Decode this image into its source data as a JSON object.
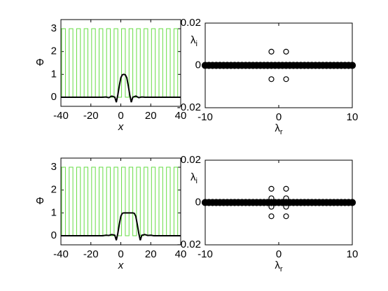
{
  "chart_data": [
    {
      "type": "line",
      "ylabel": "Φ",
      "xlabel": "x",
      "xlim": [
        -40,
        40
      ],
      "ylim": [
        -0.4,
        3.4
      ],
      "xticks": [
        -40,
        -20,
        0,
        20,
        40
      ],
      "yticks": [
        0,
        1,
        2,
        3
      ],
      "series": [
        {
          "color": "#66dd44",
          "x": [
            -40,
            -39.5,
            -39.5,
            -37,
            -37,
            -34.5,
            -34.5,
            -32,
            -32,
            -29.5,
            -29.5,
            -27,
            -27,
            -24.5,
            -24.5,
            -22,
            -22,
            -19.5,
            -19.5,
            -17,
            -17,
            -14.5,
            -14.5,
            -12,
            -12,
            -9.5,
            -9.5,
            -7,
            -7,
            -4.5,
            -4.5,
            -2,
            -2,
            0.5,
            0.5,
            3,
            3,
            5.5,
            5.5,
            8,
            8,
            10.5,
            10.5,
            13,
            13,
            15.5,
            15.5,
            18,
            18,
            20.5,
            20.5,
            23,
            23,
            25.5,
            25.5,
            28,
            28,
            30.5,
            30.5,
            33,
            33,
            35.5,
            35.5,
            38,
            38,
            40
          ],
          "values": [
            0,
            0,
            3,
            3,
            0,
            0,
            3,
            3,
            0,
            0,
            3,
            3,
            0,
            0,
            3,
            3,
            0,
            0,
            3,
            3,
            0,
            0,
            3,
            3,
            0,
            0,
            3,
            3,
            0,
            0,
            3,
            3,
            0,
            0,
            3,
            3,
            0,
            0,
            3,
            3,
            0,
            0,
            3,
            3,
            0,
            0,
            3,
            3,
            0,
            0,
            3,
            3,
            0,
            0,
            3,
            3,
            0,
            0,
            3,
            3,
            0,
            0,
            3,
            3,
            0,
            0
          ]
        },
        {
          "color": "#000000",
          "x": [
            -40,
            -12,
            -10,
            -8,
            -6,
            -4,
            -3,
            -2,
            -1,
            0,
            1,
            2,
            3,
            4,
            5,
            6,
            7,
            8,
            10,
            12,
            14,
            16,
            40
          ],
          "values": [
            0,
            0,
            0.01,
            -0.02,
            0.05,
            0,
            -0.22,
            0.1,
            0.5,
            0.85,
            0.98,
            1,
            0.98,
            0.85,
            0.5,
            0.1,
            -0.22,
            0,
            0.05,
            -0.02,
            0.01,
            0,
            0
          ]
        }
      ]
    },
    {
      "type": "scatter",
      "ylabel": "λ",
      "ylabel_sub": "i",
      "xlabel": "λ",
      "xlabel_sub": "r",
      "xlim": [
        -10,
        10
      ],
      "ylim": [
        -0.02,
        0.02
      ],
      "xticks": [
        -10,
        0,
        10
      ],
      "yticks": [
        -0.02,
        0,
        0.02
      ],
      "series": [
        {
          "color": "#000000",
          "marker": "filled",
          "x": [
            -10,
            -9.5,
            -9,
            -8.5,
            -8,
            -7.5,
            -7,
            -6.5,
            -6,
            -5.5,
            -5,
            -4.5,
            -4,
            -3.5,
            -3,
            -2.5,
            -2,
            -1.5,
            -1,
            -0.5,
            0,
            0.5,
            1,
            1.5,
            2,
            2.5,
            3,
            3.5,
            4,
            4.5,
            5,
            5.5,
            6,
            6.5,
            7,
            7.5,
            8,
            8.5,
            9,
            9.5,
            10
          ],
          "values": [
            0,
            0,
            0,
            0,
            0,
            0,
            0,
            0,
            0,
            0,
            0,
            0,
            0,
            0,
            0,
            0,
            0,
            0,
            0,
            0,
            0,
            0,
            0,
            0,
            0,
            0,
            0,
            0,
            0,
            0,
            0,
            0,
            0,
            0,
            0,
            0,
            0,
            0,
            0,
            0,
            0
          ]
        },
        {
          "color": "#000000",
          "marker": "open",
          "x": [
            -1,
            1,
            -1,
            1,
            -1,
            1
          ],
          "values": [
            0.0065,
            0.0065,
            0,
            0,
            -0.0065,
            -0.0065
          ]
        }
      ]
    },
    {
      "type": "line",
      "ylabel": "Φ",
      "xlabel": "x",
      "xlim": [
        -40,
        40
      ],
      "ylim": [
        -0.4,
        3.4
      ],
      "xticks": [
        -40,
        -20,
        0,
        20,
        40
      ],
      "yticks": [
        0,
        1,
        2,
        3
      ],
      "series": [
        {
          "color": "#66dd44",
          "x": [
            -40,
            -39.5,
            -39.5,
            -37,
            -37,
            -34.5,
            -34.5,
            -32,
            -32,
            -29.5,
            -29.5,
            -27,
            -27,
            -24.5,
            -24.5,
            -22,
            -22,
            -19.5,
            -19.5,
            -17,
            -17,
            -14.5,
            -14.5,
            -12,
            -12,
            -9.5,
            -9.5,
            -7,
            -7,
            -4.5,
            -4.5,
            -2,
            -2,
            0.5,
            0.5,
            3,
            3,
            5.5,
            5.5,
            8,
            8,
            10.5,
            10.5,
            13,
            13,
            15.5,
            15.5,
            18,
            18,
            20.5,
            20.5,
            23,
            23,
            25.5,
            25.5,
            28,
            28,
            30.5,
            30.5,
            33,
            33,
            35.5,
            35.5,
            38,
            38,
            40
          ],
          "values": [
            0,
            0,
            3,
            3,
            0,
            0,
            3,
            3,
            0,
            0,
            3,
            3,
            0,
            0,
            3,
            3,
            0,
            0,
            3,
            3,
            0,
            0,
            3,
            3,
            0,
            0,
            3,
            3,
            0,
            0,
            3,
            3,
            0,
            0,
            3,
            3,
            0,
            0,
            3,
            3,
            0,
            0,
            3,
            3,
            0,
            0,
            3,
            3,
            0,
            0,
            3,
            3,
            0,
            0,
            3,
            3,
            0,
            0,
            3,
            3,
            0,
            0,
            3,
            3,
            0,
            0
          ]
        },
        {
          "color": "#000000",
          "x": [
            -40,
            -12,
            -10,
            -8,
            -6,
            -4,
            -3,
            -2,
            -1,
            0,
            1,
            2,
            8,
            9,
            10,
            11,
            12,
            13,
            14,
            16,
            18,
            20,
            22,
            40
          ],
          "values": [
            0,
            0,
            0.02,
            0.01,
            0.05,
            0.02,
            -0.2,
            0.1,
            0.5,
            0.85,
            0.98,
            1,
            1,
            0.98,
            0.85,
            0.5,
            0.1,
            -0.2,
            0.02,
            0.05,
            0.01,
            0.02,
            0,
            0
          ]
        }
      ]
    },
    {
      "type": "scatter",
      "ylabel": "λ",
      "ylabel_sub": "i",
      "xlabel": "λ",
      "xlabel_sub": "r",
      "xlim": [
        -10,
        10
      ],
      "ylim": [
        -0.02,
        0.02
      ],
      "xticks": [
        -10,
        0,
        10
      ],
      "yticks": [
        -0.02,
        0,
        0.02
      ],
      "series": [
        {
          "color": "#000000",
          "marker": "filled",
          "x": [
            -10,
            -9.5,
            -9,
            -8.5,
            -8,
            -7.5,
            -7,
            -6.5,
            -6,
            -5.5,
            -5,
            -4.5,
            -4,
            -3.5,
            -3,
            -2.5,
            -2,
            -1.5,
            -1,
            -0.5,
            0,
            0.5,
            1,
            1.5,
            2,
            2.5,
            3,
            3.5,
            4,
            4.5,
            5,
            5.5,
            6,
            6.5,
            7,
            7.5,
            8,
            8.5,
            9,
            9.5,
            10
          ],
          "values": [
            0,
            0,
            0,
            0,
            0,
            0,
            0,
            0,
            0,
            0,
            0,
            0,
            0,
            0,
            0,
            0,
            0,
            0,
            0,
            0,
            0,
            0,
            0,
            0,
            0,
            0,
            0,
            0,
            0,
            0,
            0,
            0,
            0,
            0,
            0,
            0,
            0,
            0,
            0,
            0,
            0
          ]
        },
        {
          "color": "#000000",
          "marker": "open",
          "x": [
            -1,
            1,
            -1,
            1,
            -1,
            1,
            -1,
            1,
            -1,
            1
          ],
          "values": [
            0.0065,
            0.0065,
            0.002,
            0.002,
            0,
            0,
            -0.002,
            -0.002,
            -0.0065,
            -0.0065
          ]
        }
      ]
    }
  ]
}
